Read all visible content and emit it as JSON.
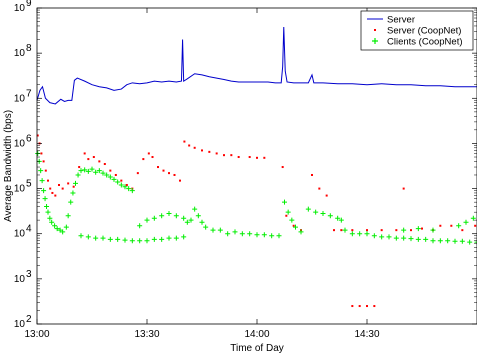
{
  "chart_data": {
    "type": "line",
    "xlabel": "Time of Day",
    "ylabel": "Average Bandwidth (bps)",
    "x_range_minutes": [
      780,
      900
    ],
    "x_ticks": [
      {
        "value": 780,
        "label": "13:00"
      },
      {
        "value": 810,
        "label": "13:30"
      },
      {
        "value": 840,
        "label": "14:00"
      },
      {
        "value": 870,
        "label": "14:30"
      }
    ],
    "y_scale": "log",
    "ylim": [
      100,
      1000000000
    ],
    "y_ticks": [
      {
        "value": 100,
        "base": "10",
        "exp": "2"
      },
      {
        "value": 1000,
        "base": "10",
        "exp": "3"
      },
      {
        "value": 10000,
        "base": "10",
        "exp": "4"
      },
      {
        "value": 100000,
        "base": "10",
        "exp": "5"
      },
      {
        "value": 1000000,
        "base": "10",
        "exp": "6"
      },
      {
        "value": 10000000,
        "base": "10",
        "exp": "7"
      },
      {
        "value": 100000000,
        "base": "10",
        "exp": "8"
      },
      {
        "value": 1000000000,
        "base": "10",
        "exp": "9"
      }
    ],
    "legend_position": "top-right",
    "series": [
      {
        "name": "Server",
        "style": "line",
        "color": "#0000cc",
        "points": [
          [
            780.0,
            9000000
          ],
          [
            780.8,
            15000000
          ],
          [
            781.5,
            18000000
          ],
          [
            782.3,
            10000000
          ],
          [
            783.5,
            8000000
          ],
          [
            785.0,
            7500000
          ],
          [
            786.5,
            9500000
          ],
          [
            787.5,
            8500000
          ],
          [
            788.5,
            9000000
          ],
          [
            789.5,
            9000000
          ],
          [
            790.2,
            25000000
          ],
          [
            791.0,
            28000000
          ],
          [
            793.0,
            24000000
          ],
          [
            795.0,
            20000000
          ],
          [
            797.0,
            18000000
          ],
          [
            799.0,
            17000000
          ],
          [
            801.0,
            15000000
          ],
          [
            803.0,
            16000000
          ],
          [
            804.5,
            20000000
          ],
          [
            806.0,
            22000000
          ],
          [
            808.0,
            21000000
          ],
          [
            810.0,
            22000000
          ],
          [
            812.0,
            24000000
          ],
          [
            814.0,
            23000000
          ],
          [
            816.0,
            24000000
          ],
          [
            818.0,
            23000000
          ],
          [
            819.4,
            24000000
          ],
          [
            819.7,
            200000000
          ],
          [
            820.0,
            24000000
          ],
          [
            821.0,
            27000000
          ],
          [
            823.0,
            35000000
          ],
          [
            825.0,
            33000000
          ],
          [
            827.0,
            30000000
          ],
          [
            829.0,
            28000000
          ],
          [
            831.0,
            26000000
          ],
          [
            833.0,
            24000000
          ],
          [
            835.0,
            23000000
          ],
          [
            837.0,
            23000000
          ],
          [
            839.0,
            23000000
          ],
          [
            841.0,
            23000000
          ],
          [
            843.0,
            23000000
          ],
          [
            845.0,
            22000000
          ],
          [
            846.6,
            22000000
          ],
          [
            847.0,
            50000000
          ],
          [
            847.3,
            380000000
          ],
          [
            847.7,
            40000000
          ],
          [
            848.2,
            23000000
          ],
          [
            850.0,
            22000000
          ],
          [
            852.0,
            22000000
          ],
          [
            854.0,
            22000000
          ],
          [
            855.0,
            33000000
          ],
          [
            855.5,
            22000000
          ],
          [
            858.0,
            22000000
          ],
          [
            862.0,
            21000000
          ],
          [
            866.0,
            21000000
          ],
          [
            870.0,
            20000000
          ],
          [
            874.0,
            21000000
          ],
          [
            878.0,
            20000000
          ],
          [
            882.0,
            20000000
          ],
          [
            886.0,
            19000000
          ],
          [
            890.0,
            19000000
          ],
          [
            894.0,
            18000000
          ],
          [
            900.0,
            18000000
          ]
        ]
      },
      {
        "name": "Server (CoopNet)",
        "style": "dots",
        "color": "#ff0000",
        "points": [
          [
            780.2,
            1500000
          ],
          [
            780.7,
            1000000
          ],
          [
            781.2,
            600000
          ],
          [
            781.8,
            400000
          ],
          [
            782.4,
            250000
          ],
          [
            783.0,
            150000
          ],
          [
            783.6,
            100000
          ],
          [
            784.2,
            80000
          ],
          [
            785.0,
            70000
          ],
          [
            786.0,
            120000
          ],
          [
            787.0,
            100000
          ],
          [
            788.5,
            130000
          ],
          [
            790.0,
            110000
          ],
          [
            791.5,
            300000
          ],
          [
            793.0,
            600000
          ],
          [
            794.0,
            450000
          ],
          [
            795.5,
            500000
          ],
          [
            797.0,
            400000
          ],
          [
            798.5,
            350000
          ],
          [
            800.0,
            250000
          ],
          [
            801.5,
            200000
          ],
          [
            803.0,
            150000
          ],
          [
            804.5,
            120000
          ],
          [
            806.0,
            100000
          ],
          [
            807.5,
            220000
          ],
          [
            809.0,
            450000
          ],
          [
            810.5,
            600000
          ],
          [
            811.5,
            500000
          ],
          [
            813.0,
            300000
          ],
          [
            814.5,
            250000
          ],
          [
            816.0,
            220000
          ],
          [
            817.5,
            200000
          ],
          [
            819.0,
            150000
          ],
          [
            820.2,
            1100000
          ],
          [
            821.5,
            900000
          ],
          [
            823.0,
            800000
          ],
          [
            825.0,
            700000
          ],
          [
            827.0,
            650000
          ],
          [
            829.0,
            600000
          ],
          [
            831.0,
            550000
          ],
          [
            833.0,
            550000
          ],
          [
            835.0,
            500000
          ],
          [
            838.0,
            500000
          ],
          [
            840.0,
            480000
          ],
          [
            842.0,
            480000
          ],
          [
            847.0,
            300000
          ],
          [
            848.0,
            25000
          ],
          [
            850.0,
            15000
          ],
          [
            852.0,
            12000
          ],
          [
            855.0,
            200000
          ],
          [
            857.0,
            100000
          ],
          [
            859.0,
            70000
          ],
          [
            861.0,
            12000
          ],
          [
            863.0,
            12000
          ],
          [
            866.0,
            12000
          ],
          [
            870.0,
            12000
          ],
          [
            874.0,
            12000
          ],
          [
            878.0,
            12000
          ],
          [
            880.0,
            100000
          ],
          [
            882.0,
            12000
          ],
          [
            885.0,
            13000
          ],
          [
            888.0,
            12000
          ],
          [
            890.0,
            15000
          ],
          [
            893.0,
            15000
          ],
          [
            896.0,
            12000
          ],
          [
            899.5,
            15000
          ],
          [
            866.0,
            250
          ],
          [
            868.0,
            250
          ],
          [
            870.0,
            250
          ],
          [
            872.0,
            250
          ]
        ]
      },
      {
        "name": "Clients (CoopNet)",
        "style": "plus",
        "color": "#00ee00",
        "points": [
          [
            780.2,
            600000
          ],
          [
            780.6,
            400000
          ],
          [
            781.0,
            250000
          ],
          [
            781.4,
            150000
          ],
          [
            781.8,
            90000
          ],
          [
            782.2,
            60000
          ],
          [
            782.6,
            40000
          ],
          [
            783.0,
            30000
          ],
          [
            783.5,
            22000
          ],
          [
            784.0,
            18000
          ],
          [
            784.8,
            15000
          ],
          [
            785.5,
            13000
          ],
          [
            786.3,
            12000
          ],
          [
            787.0,
            11000
          ],
          [
            788.0,
            14000
          ],
          [
            788.5,
            25000
          ],
          [
            789.2,
            50000
          ],
          [
            789.8,
            80000
          ],
          [
            790.5,
            130000
          ],
          [
            791.2,
            200000
          ],
          [
            792.0,
            250000
          ],
          [
            793.0,
            260000
          ],
          [
            794.0,
            240000
          ],
          [
            795.0,
            270000
          ],
          [
            796.0,
            230000
          ],
          [
            797.0,
            250000
          ],
          [
            798.0,
            220000
          ],
          [
            799.0,
            200000
          ],
          [
            800.0,
            180000
          ],
          [
            801.0,
            160000
          ],
          [
            802.0,
            140000
          ],
          [
            803.0,
            120000
          ],
          [
            804.0,
            110000
          ],
          [
            805.0,
            100000
          ],
          [
            806.0,
            90000
          ],
          [
            792.0,
            9000
          ],
          [
            794.0,
            8500
          ],
          [
            796.0,
            8000
          ],
          [
            798.0,
            8000
          ],
          [
            800.0,
            7500
          ],
          [
            802.0,
            7500
          ],
          [
            804.0,
            7200
          ],
          [
            806.0,
            7000
          ],
          [
            808.0,
            7000
          ],
          [
            810.0,
            7000
          ],
          [
            812.0,
            7500
          ],
          [
            814.0,
            7500
          ],
          [
            816.0,
            8000
          ],
          [
            818.0,
            8000
          ],
          [
            820.0,
            8500
          ],
          [
            808.0,
            15000
          ],
          [
            810.0,
            20000
          ],
          [
            812.0,
            22000
          ],
          [
            814.0,
            25000
          ],
          [
            816.0,
            28000
          ],
          [
            818.0,
            25000
          ],
          [
            820.0,
            22000
          ],
          [
            821.0,
            18000
          ],
          [
            822.0,
            20000
          ],
          [
            823.0,
            35000
          ],
          [
            824.0,
            25000
          ],
          [
            825.0,
            18000
          ],
          [
            826.0,
            14000
          ],
          [
            828.0,
            12000
          ],
          [
            830.0,
            12000
          ],
          [
            832.0,
            10000
          ],
          [
            834.0,
            11000
          ],
          [
            836.0,
            10000
          ],
          [
            838.0,
            10000
          ],
          [
            840.0,
            9500
          ],
          [
            842.0,
            9500
          ],
          [
            844.0,
            9000
          ],
          [
            846.0,
            9000
          ],
          [
            847.5,
            50000
          ],
          [
            848.5,
            30000
          ],
          [
            849.5,
            20000
          ],
          [
            850.5,
            14000
          ],
          [
            852.0,
            11000
          ],
          [
            854.0,
            35000
          ],
          [
            856.0,
            30000
          ],
          [
            858.0,
            28000
          ],
          [
            860.0,
            25000
          ],
          [
            862.0,
            22000
          ],
          [
            863.0,
            20000
          ],
          [
            864.0,
            12000
          ],
          [
            866.0,
            10000
          ],
          [
            868.0,
            10000
          ],
          [
            870.0,
            10000
          ],
          [
            872.0,
            9000
          ],
          [
            874.0,
            8500
          ],
          [
            876.0,
            8500
          ],
          [
            878.0,
            8000
          ],
          [
            880.0,
            8000
          ],
          [
            882.0,
            7800
          ],
          [
            884.0,
            7500
          ],
          [
            886.0,
            7500
          ],
          [
            888.0,
            7000
          ],
          [
            890.0,
            7000
          ],
          [
            892.0,
            7000
          ],
          [
            894.0,
            6800
          ],
          [
            896.0,
            6800
          ],
          [
            898.0,
            6500
          ],
          [
            900.0,
            6500
          ],
          [
            895.0,
            15000
          ],
          [
            897.0,
            18000
          ],
          [
            899.0,
            22000
          ],
          [
            880.0,
            12000
          ],
          [
            884.0,
            13000
          ],
          [
            888.0,
            12000
          ]
        ]
      }
    ]
  }
}
